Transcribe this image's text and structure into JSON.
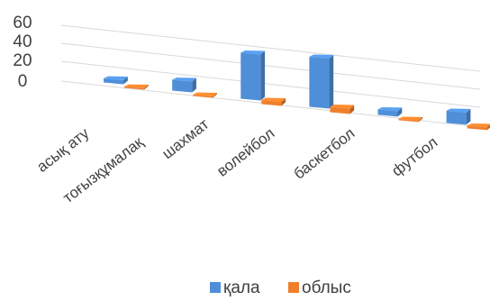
{
  "chart_data": {
    "type": "bar",
    "categories": [
      "асық ату",
      "тоғызқұмалақ",
      "шахмат",
      "волейбол",
      "баскетбол",
      "футбол"
    ],
    "series": [
      {
        "name": "қала",
        "values": [
          3,
          8,
          34,
          37,
          4,
          9
        ],
        "color": "#4f8fd8"
      },
      {
        "name": "облыс",
        "values": [
          1,
          1,
          3,
          4,
          1,
          2
        ],
        "color": "#f07f2b"
      }
    ],
    "ylim": [
      0,
      60
    ],
    "yticks": [
      "0",
      "20",
      "40",
      "60"
    ],
    "grid": true,
    "legend_position": "bottom"
  }
}
